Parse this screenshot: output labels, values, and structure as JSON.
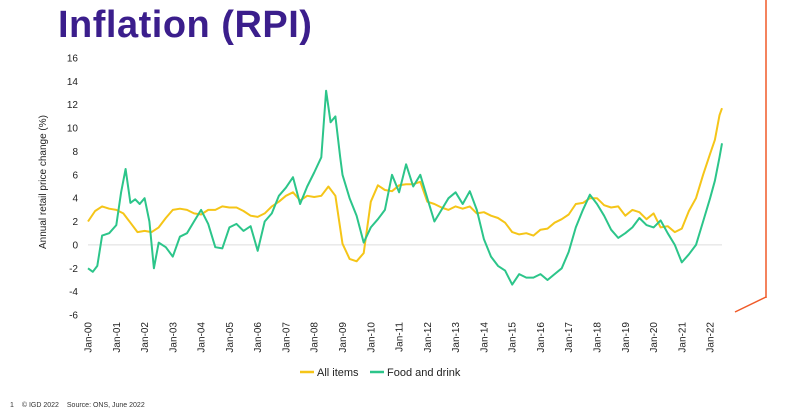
{
  "page": {
    "title": "Inflation (RPI)",
    "footer_page": "1",
    "footer_copyright": "© IGD 2022",
    "footer_source": "Source: ONS, June 2022"
  },
  "chart_data": {
    "type": "line",
    "title": "",
    "ylabel": "Annual retail price change (%)",
    "xlabel": "",
    "ylim": [
      -6,
      16
    ],
    "yticks": [
      16,
      14,
      12,
      10,
      8,
      6,
      4,
      2,
      0,
      -2,
      -4,
      -6
    ],
    "grid": false,
    "legend_position": "bottom",
    "x_tick_labels": [
      "Jan-00",
      "Jan-01",
      "Jan-02",
      "Jan-03",
      "Jan-04",
      "Jan-05",
      "Jan-06",
      "Jan-07",
      "Jan-08",
      "Jan-09",
      "Jan-10",
      "Jan-11",
      "Jan-12",
      "Jan-13",
      "Jan-14",
      "Jan-15",
      "Jan-16",
      "Jan-17",
      "Jan-18",
      "Jan-19",
      "Jan-20",
      "Jan-21",
      "Jan-22"
    ],
    "x_range": [
      2000.0,
      2022.42
    ],
    "series": [
      {
        "name": "All items",
        "color": "#f5c518",
        "points": [
          [
            2000.0,
            2.0
          ],
          [
            2000.25,
            2.9
          ],
          [
            2000.5,
            3.3
          ],
          [
            2000.75,
            3.1
          ],
          [
            2001.0,
            3.0
          ],
          [
            2001.25,
            2.7
          ],
          [
            2001.5,
            1.9
          ],
          [
            2001.75,
            1.1
          ],
          [
            2002.0,
            1.2
          ],
          [
            2002.25,
            1.1
          ],
          [
            2002.5,
            1.5
          ],
          [
            2002.75,
            2.3
          ],
          [
            2003.0,
            3.0
          ],
          [
            2003.25,
            3.1
          ],
          [
            2003.5,
            3.0
          ],
          [
            2003.75,
            2.7
          ],
          [
            2004.0,
            2.6
          ],
          [
            2004.25,
            3.0
          ],
          [
            2004.5,
            3.0
          ],
          [
            2004.75,
            3.3
          ],
          [
            2005.0,
            3.2
          ],
          [
            2005.25,
            3.2
          ],
          [
            2005.5,
            2.9
          ],
          [
            2005.75,
            2.5
          ],
          [
            2006.0,
            2.4
          ],
          [
            2006.25,
            2.7
          ],
          [
            2006.5,
            3.3
          ],
          [
            2006.75,
            3.7
          ],
          [
            2007.0,
            4.2
          ],
          [
            2007.25,
            4.5
          ],
          [
            2007.5,
            3.8
          ],
          [
            2007.75,
            4.2
          ],
          [
            2008.0,
            4.1
          ],
          [
            2008.25,
            4.2
          ],
          [
            2008.5,
            5.0
          ],
          [
            2008.75,
            4.2
          ],
          [
            2009.0,
            0.1
          ],
          [
            2009.25,
            -1.2
          ],
          [
            2009.5,
            -1.4
          ],
          [
            2009.75,
            -0.7
          ],
          [
            2010.0,
            3.7
          ],
          [
            2010.25,
            5.1
          ],
          [
            2010.5,
            4.7
          ],
          [
            2010.75,
            4.6
          ],
          [
            2011.0,
            5.1
          ],
          [
            2011.25,
            5.2
          ],
          [
            2011.5,
            5.2
          ],
          [
            2011.75,
            5.4
          ],
          [
            2012.0,
            3.7
          ],
          [
            2012.25,
            3.5
          ],
          [
            2012.5,
            3.2
          ],
          [
            2012.75,
            3.0
          ],
          [
            2013.0,
            3.3
          ],
          [
            2013.25,
            3.1
          ],
          [
            2013.5,
            3.3
          ],
          [
            2013.75,
            2.7
          ],
          [
            2014.0,
            2.8
          ],
          [
            2014.25,
            2.5
          ],
          [
            2014.5,
            2.3
          ],
          [
            2014.75,
            1.9
          ],
          [
            2015.0,
            1.1
          ],
          [
            2015.25,
            0.9
          ],
          [
            2015.5,
            1.0
          ],
          [
            2015.75,
            0.8
          ],
          [
            2016.0,
            1.3
          ],
          [
            2016.25,
            1.4
          ],
          [
            2016.5,
            1.9
          ],
          [
            2016.75,
            2.2
          ],
          [
            2017.0,
            2.6
          ],
          [
            2017.25,
            3.5
          ],
          [
            2017.5,
            3.6
          ],
          [
            2017.75,
            4.0
          ],
          [
            2018.0,
            4.0
          ],
          [
            2018.25,
            3.4
          ],
          [
            2018.5,
            3.2
          ],
          [
            2018.75,
            3.3
          ],
          [
            2019.0,
            2.5
          ],
          [
            2019.25,
            3.0
          ],
          [
            2019.5,
            2.8
          ],
          [
            2019.75,
            2.2
          ],
          [
            2020.0,
            2.7
          ],
          [
            2020.25,
            1.5
          ],
          [
            2020.5,
            1.6
          ],
          [
            2020.75,
            1.1
          ],
          [
            2021.0,
            1.4
          ],
          [
            2021.25,
            2.9
          ],
          [
            2021.5,
            4.0
          ],
          [
            2021.75,
            6.0
          ],
          [
            2022.0,
            7.8
          ],
          [
            2022.17,
            9.0
          ],
          [
            2022.33,
            11.1
          ],
          [
            2022.42,
            11.7
          ]
        ]
      },
      {
        "name": "Food and drink",
        "color": "#2cc58a",
        "points": [
          [
            2000.0,
            -2.0
          ],
          [
            2000.17,
            -2.3
          ],
          [
            2000.33,
            -1.8
          ],
          [
            2000.5,
            0.8
          ],
          [
            2000.75,
            1.0
          ],
          [
            2001.0,
            1.7
          ],
          [
            2001.17,
            4.5
          ],
          [
            2001.33,
            6.5
          ],
          [
            2001.5,
            3.6
          ],
          [
            2001.67,
            3.9
          ],
          [
            2001.83,
            3.5
          ],
          [
            2002.0,
            4.0
          ],
          [
            2002.17,
            2.0
          ],
          [
            2002.33,
            -2.0
          ],
          [
            2002.5,
            0.2
          ],
          [
            2002.75,
            -0.2
          ],
          [
            2003.0,
            -1.0
          ],
          [
            2003.25,
            0.7
          ],
          [
            2003.5,
            1.0
          ],
          [
            2003.75,
            2.0
          ],
          [
            2004.0,
            3.0
          ],
          [
            2004.25,
            1.8
          ],
          [
            2004.5,
            -0.2
          ],
          [
            2004.75,
            -0.3
          ],
          [
            2005.0,
            1.5
          ],
          [
            2005.25,
            1.8
          ],
          [
            2005.5,
            1.2
          ],
          [
            2005.75,
            1.6
          ],
          [
            2006.0,
            -0.5
          ],
          [
            2006.25,
            2.0
          ],
          [
            2006.5,
            2.7
          ],
          [
            2006.75,
            4.2
          ],
          [
            2007.0,
            4.9
          ],
          [
            2007.25,
            5.8
          ],
          [
            2007.5,
            3.5
          ],
          [
            2007.75,
            5.0
          ],
          [
            2008.0,
            6.2
          ],
          [
            2008.25,
            7.5
          ],
          [
            2008.42,
            13.2
          ],
          [
            2008.58,
            10.5
          ],
          [
            2008.75,
            11.0
          ],
          [
            2008.92,
            7.5
          ],
          [
            2009.0,
            6.0
          ],
          [
            2009.25,
            4.0
          ],
          [
            2009.5,
            2.5
          ],
          [
            2009.75,
            0.2
          ],
          [
            2010.0,
            1.5
          ],
          [
            2010.25,
            2.2
          ],
          [
            2010.5,
            3.0
          ],
          [
            2010.75,
            6.0
          ],
          [
            2011.0,
            4.5
          ],
          [
            2011.25,
            6.9
          ],
          [
            2011.5,
            5.0
          ],
          [
            2011.75,
            6.0
          ],
          [
            2012.0,
            4.0
          ],
          [
            2012.25,
            2.0
          ],
          [
            2012.5,
            3.0
          ],
          [
            2012.75,
            4.0
          ],
          [
            2013.0,
            4.5
          ],
          [
            2013.25,
            3.5
          ],
          [
            2013.5,
            4.6
          ],
          [
            2013.75,
            3.0
          ],
          [
            2014.0,
            0.5
          ],
          [
            2014.25,
            -1.0
          ],
          [
            2014.5,
            -1.8
          ],
          [
            2014.75,
            -2.2
          ],
          [
            2015.0,
            -3.4
          ],
          [
            2015.25,
            -2.5
          ],
          [
            2015.5,
            -2.8
          ],
          [
            2015.75,
            -2.8
          ],
          [
            2016.0,
            -2.5
          ],
          [
            2016.25,
            -3.0
          ],
          [
            2016.5,
            -2.5
          ],
          [
            2016.75,
            -2.0
          ],
          [
            2017.0,
            -0.6
          ],
          [
            2017.25,
            1.5
          ],
          [
            2017.5,
            3.0
          ],
          [
            2017.75,
            4.3
          ],
          [
            2018.0,
            3.5
          ],
          [
            2018.25,
            2.5
          ],
          [
            2018.5,
            1.3
          ],
          [
            2018.75,
            0.6
          ],
          [
            2019.0,
            1.0
          ],
          [
            2019.25,
            1.5
          ],
          [
            2019.5,
            2.3
          ],
          [
            2019.75,
            1.7
          ],
          [
            2020.0,
            1.5
          ],
          [
            2020.25,
            2.1
          ],
          [
            2020.5,
            1.0
          ],
          [
            2020.75,
            0.0
          ],
          [
            2021.0,
            -1.5
          ],
          [
            2021.25,
            -0.8
          ],
          [
            2021.5,
            0.0
          ],
          [
            2021.75,
            2.0
          ],
          [
            2022.0,
            4.0
          ],
          [
            2022.17,
            5.5
          ],
          [
            2022.33,
            7.5
          ],
          [
            2022.42,
            8.7
          ]
        ]
      }
    ]
  }
}
